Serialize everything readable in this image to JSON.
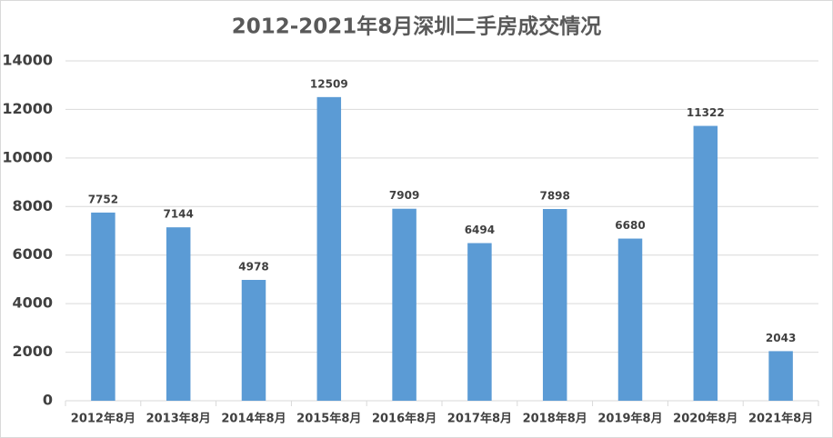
{
  "chart_data": {
    "type": "bar",
    "title": "2012-2021年8月深圳二手房成交情况",
    "categories": [
      "2012年8月",
      "2013年8月",
      "2014年8月",
      "2015年8月",
      "2016年8月",
      "2017年8月",
      "2018年8月",
      "2019年8月",
      "2020年8月",
      "2021年8月"
    ],
    "values": [
      7752,
      7144,
      4978,
      12509,
      7909,
      6494,
      7898,
      6680,
      11322,
      2043
    ],
    "color": "#5b9bd5",
    "ylim": [
      0,
      14000
    ],
    "yticks": [
      0,
      2000,
      4000,
      6000,
      8000,
      10000,
      12000,
      14000
    ],
    "grid": true
  }
}
